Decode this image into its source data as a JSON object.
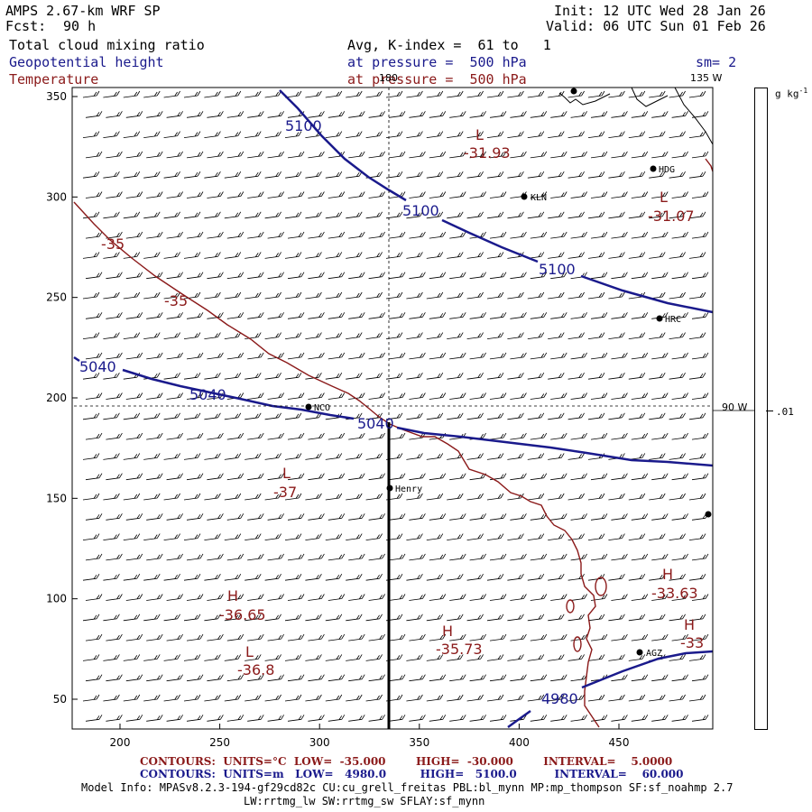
{
  "header": {
    "model": "AMPS 2.67-km WRF SP",
    "fcst_label": "Fcst:",
    "fcst_value": "90 h",
    "init": "Init: 12 UTC Wed 28 Jan 26",
    "valid": "Valid: 06 UTC Sun 01 Feb 26",
    "field1": "Total cloud mixing ratio",
    "field1_detail": "Avg, K-index =  61 to   1",
    "field2": "Geopotential height",
    "field2_detail": "at pressure =  500 hPa",
    "field2_sm": "sm= 2",
    "field3": "Temperature",
    "field3_detail": "at pressure =  500 hPa"
  },
  "colorbar": {
    "units": "g kg",
    "units_exp": "-1",
    "value": ".01"
  },
  "map": {
    "meridian_labels": {
      "m180": "180",
      "m135w": "135 W",
      "m90w": "90 W"
    },
    "x_ticks": [
      200,
      250,
      300,
      350,
      400,
      450
    ],
    "y_ticks": [
      50,
      100,
      150,
      200,
      250,
      300,
      350
    ],
    "stations": [
      "HDG",
      "KLN",
      "HRC",
      "NCO",
      "Henry",
      "AGZ"
    ],
    "height_labels": [
      "5100",
      "5100",
      "5100",
      "5040",
      "5040",
      "5040",
      "4980"
    ],
    "temp_labels": [
      "-35",
      "-35"
    ],
    "centers": [
      {
        "type": "L",
        "value": "-31.93"
      },
      {
        "type": "L",
        "value": "-31.07"
      },
      {
        "type": "L",
        "value": "-37"
      },
      {
        "type": "H",
        "value": "-36.65"
      },
      {
        "type": "L",
        "value": "-36.8"
      },
      {
        "type": "H",
        "value": "-35.73"
      },
      {
        "type": "H",
        "value": "-33.63"
      },
      {
        "type": "H",
        "value": "-33"
      }
    ]
  },
  "colors": {
    "height": "#1a1a8c",
    "temperature": "#8b1a1a",
    "wind": "#000000"
  },
  "footer": {
    "temp_line": "CONTOURS:  UNITS=°C  LOW=  -35.000        HIGH=  -30.000        INTERVAL=    5.0000",
    "height_line": "CONTOURS:  UNITS=m   LOW=   4980.0         HIGH=   5100.0          INTERVAL=    60.000",
    "model_info": "Model Info: MPASv8.2.3-194-gf29cd82c CU:cu_grell_freitas PBL:bl_mynn MP:mp_thompson SF:sf_noahmp 2.7",
    "model_info2": "LW:rrtmg_lw SW:rrtmg_sw SFLAY:sf_mynn"
  }
}
